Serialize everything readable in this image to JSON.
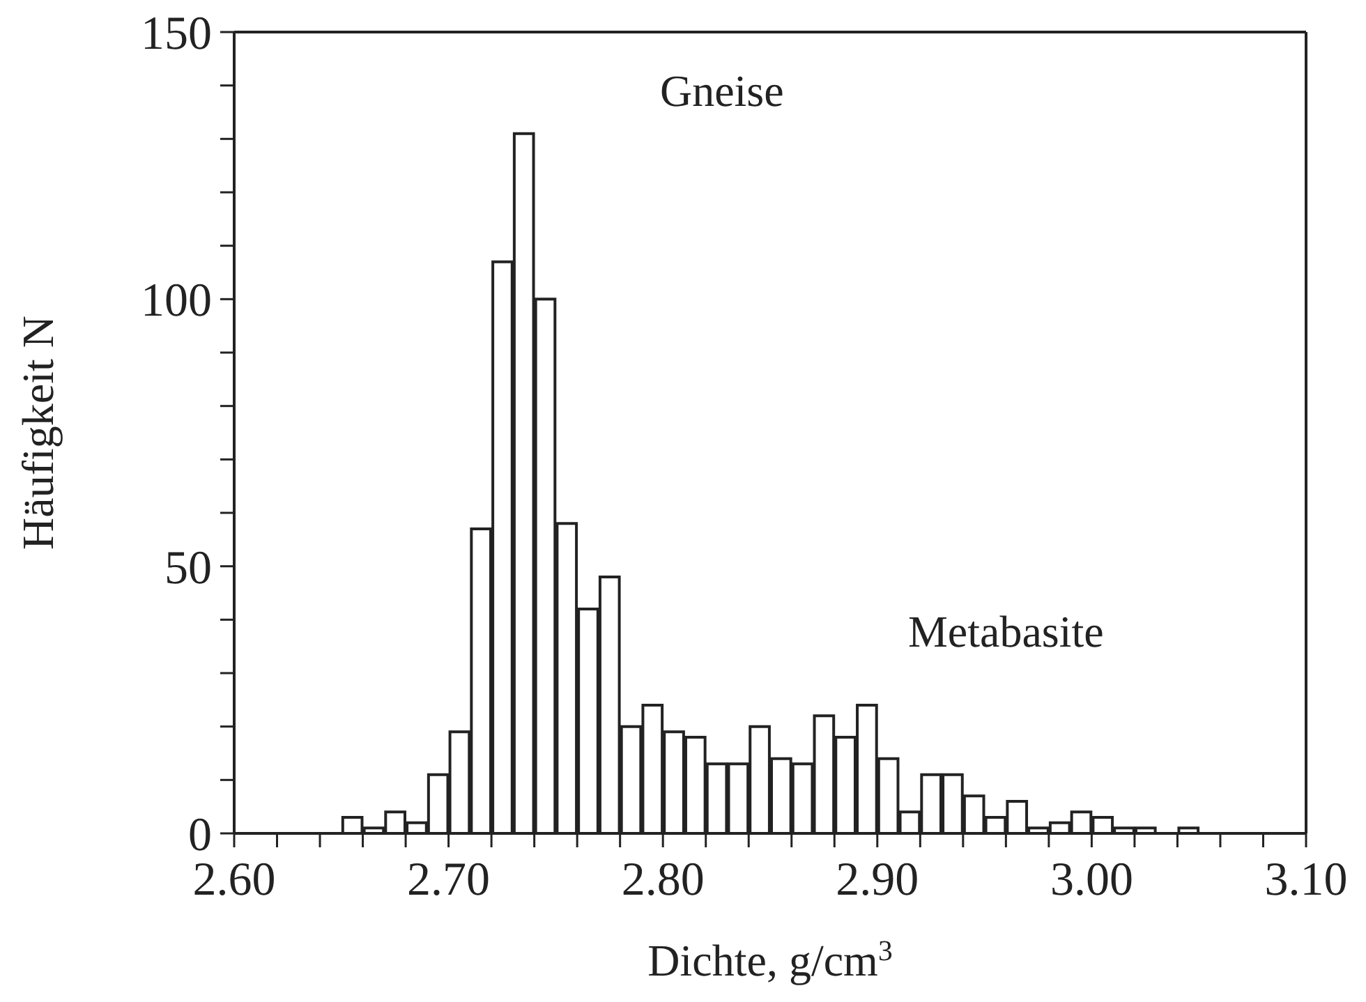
{
  "chart_data": {
    "type": "histogram",
    "xlabel": "Dichte, g/cm$^{3}$",
    "ylabel": "Häufigkeit N",
    "bins": [
      2.65,
      2.66,
      2.67,
      2.68,
      2.69,
      2.7,
      2.71,
      2.72,
      2.73,
      2.74,
      2.75,
      2.76,
      2.77,
      2.78,
      2.79,
      2.8,
      2.81,
      2.82,
      2.83,
      2.84,
      2.85,
      2.86,
      2.87,
      2.88,
      2.89,
      2.9,
      2.91,
      2.92,
      2.93,
      2.94,
      2.95,
      2.96,
      2.97,
      2.98,
      2.99,
      3.0,
      3.01,
      3.02,
      3.03,
      3.04,
      3.05
    ],
    "values": [
      3,
      1,
      4,
      2,
      11,
      19,
      57,
      107,
      131,
      100,
      58,
      42,
      48,
      20,
      24,
      19,
      18,
      13,
      13,
      20,
      14,
      13,
      22,
      18,
      24,
      14,
      4,
      11,
      11,
      7,
      3,
      6,
      1,
      2,
      4,
      3,
      1,
      1,
      0,
      1
    ],
    "color": "#222222",
    "xlim": [
      2.6,
      3.1
    ],
    "xticks": [
      {
        "value": 2.6,
        "label": "2.60"
      },
      {
        "value": 2.62,
        "label": null
      },
      {
        "value": 2.64,
        "label": null
      },
      {
        "value": 2.66,
        "label": null
      },
      {
        "value": 2.68,
        "label": null
      },
      {
        "value": 2.7,
        "label": "2.70"
      },
      {
        "value": 2.72,
        "label": null
      },
      {
        "value": 2.74,
        "label": null
      },
      {
        "value": 2.76,
        "label": null
      },
      {
        "value": 2.78,
        "label": null
      },
      {
        "value": 2.8,
        "label": "2.80"
      },
      {
        "value": 2.82,
        "label": null
      },
      {
        "value": 2.84,
        "label": null
      },
      {
        "value": 2.86,
        "label": null
      },
      {
        "value": 2.88,
        "label": null
      },
      {
        "value": 2.9,
        "label": "2.90"
      },
      {
        "value": 2.92,
        "label": null
      },
      {
        "value": 2.94,
        "label": null
      },
      {
        "value": 2.96,
        "label": null
      },
      {
        "value": 2.98,
        "label": null
      },
      {
        "value": 3.0,
        "label": "3.00"
      },
      {
        "value": 3.02,
        "label": null
      },
      {
        "value": 3.04,
        "label": null
      },
      {
        "value": 3.06,
        "label": null
      },
      {
        "value": 3.08,
        "label": null
      },
      {
        "value": 3.1,
        "label": "3.10"
      }
    ],
    "ylim": [
      0,
      150
    ],
    "yticks": [
      0,
      {
        "value": 10,
        "label": null
      },
      {
        "value": 20,
        "label": null
      },
      {
        "value": 30,
        "label": null
      },
      {
        "value": 40,
        "label": null
      },
      50,
      {
        "value": 60,
        "label": null
      },
      {
        "value": 70,
        "label": null
      },
      {
        "value": 80,
        "label": null
      },
      {
        "value": 90,
        "label": null
      },
      100,
      {
        "value": 110,
        "label": null
      },
      {
        "value": 120,
        "label": null
      },
      {
        "value": 130,
        "label": null
      },
      {
        "value": 140,
        "label": null
      },
      150
    ],
    "annotations": [
      "Gneise",
      "Metabasite"
    ]
  }
}
